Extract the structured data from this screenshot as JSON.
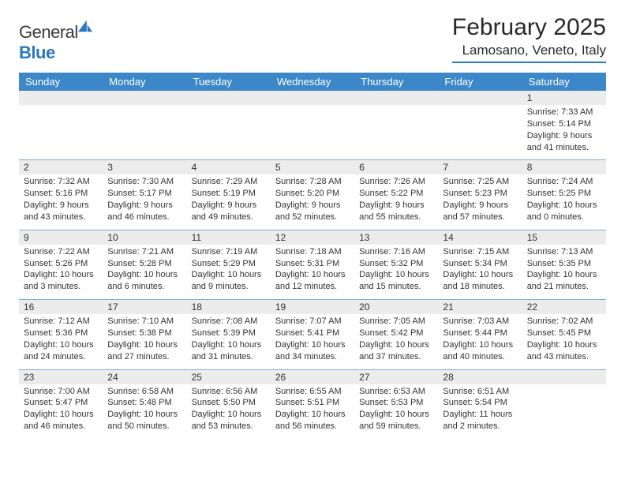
{
  "brand": {
    "text1": "General",
    "text2": "Blue",
    "text_color": "#3a3a3a",
    "accent_color": "#2b77c0"
  },
  "title": {
    "month": "February 2025",
    "location": "Lamosano, Veneto, Italy"
  },
  "colors": {
    "header_bg": "#3b87c8",
    "daynum_bg": "#ececec",
    "rule": "#2b77c0",
    "text": "#333333"
  },
  "days_of_week": [
    "Sunday",
    "Monday",
    "Tuesday",
    "Wednesday",
    "Thursday",
    "Friday",
    "Saturday"
  ],
  "weeks": [
    [
      null,
      null,
      null,
      null,
      null,
      null,
      {
        "n": "1",
        "sunrise": "Sunrise: 7:33 AM",
        "sunset": "Sunset: 5:14 PM",
        "day1": "Daylight: 9 hours",
        "day2": "and 41 minutes."
      }
    ],
    [
      {
        "n": "2",
        "sunrise": "Sunrise: 7:32 AM",
        "sunset": "Sunset: 5:16 PM",
        "day1": "Daylight: 9 hours",
        "day2": "and 43 minutes."
      },
      {
        "n": "3",
        "sunrise": "Sunrise: 7:30 AM",
        "sunset": "Sunset: 5:17 PM",
        "day1": "Daylight: 9 hours",
        "day2": "and 46 minutes."
      },
      {
        "n": "4",
        "sunrise": "Sunrise: 7:29 AM",
        "sunset": "Sunset: 5:19 PM",
        "day1": "Daylight: 9 hours",
        "day2": "and 49 minutes."
      },
      {
        "n": "5",
        "sunrise": "Sunrise: 7:28 AM",
        "sunset": "Sunset: 5:20 PM",
        "day1": "Daylight: 9 hours",
        "day2": "and 52 minutes."
      },
      {
        "n": "6",
        "sunrise": "Sunrise: 7:26 AM",
        "sunset": "Sunset: 5:22 PM",
        "day1": "Daylight: 9 hours",
        "day2": "and 55 minutes."
      },
      {
        "n": "7",
        "sunrise": "Sunrise: 7:25 AM",
        "sunset": "Sunset: 5:23 PM",
        "day1": "Daylight: 9 hours",
        "day2": "and 57 minutes."
      },
      {
        "n": "8",
        "sunrise": "Sunrise: 7:24 AM",
        "sunset": "Sunset: 5:25 PM",
        "day1": "Daylight: 10 hours",
        "day2": "and 0 minutes."
      }
    ],
    [
      {
        "n": "9",
        "sunrise": "Sunrise: 7:22 AM",
        "sunset": "Sunset: 5:26 PM",
        "day1": "Daylight: 10 hours",
        "day2": "and 3 minutes."
      },
      {
        "n": "10",
        "sunrise": "Sunrise: 7:21 AM",
        "sunset": "Sunset: 5:28 PM",
        "day1": "Daylight: 10 hours",
        "day2": "and 6 minutes."
      },
      {
        "n": "11",
        "sunrise": "Sunrise: 7:19 AM",
        "sunset": "Sunset: 5:29 PM",
        "day1": "Daylight: 10 hours",
        "day2": "and 9 minutes."
      },
      {
        "n": "12",
        "sunrise": "Sunrise: 7:18 AM",
        "sunset": "Sunset: 5:31 PM",
        "day1": "Daylight: 10 hours",
        "day2": "and 12 minutes."
      },
      {
        "n": "13",
        "sunrise": "Sunrise: 7:16 AM",
        "sunset": "Sunset: 5:32 PM",
        "day1": "Daylight: 10 hours",
        "day2": "and 15 minutes."
      },
      {
        "n": "14",
        "sunrise": "Sunrise: 7:15 AM",
        "sunset": "Sunset: 5:34 PM",
        "day1": "Daylight: 10 hours",
        "day2": "and 18 minutes."
      },
      {
        "n": "15",
        "sunrise": "Sunrise: 7:13 AM",
        "sunset": "Sunset: 5:35 PM",
        "day1": "Daylight: 10 hours",
        "day2": "and 21 minutes."
      }
    ],
    [
      {
        "n": "16",
        "sunrise": "Sunrise: 7:12 AM",
        "sunset": "Sunset: 5:36 PM",
        "day1": "Daylight: 10 hours",
        "day2": "and 24 minutes."
      },
      {
        "n": "17",
        "sunrise": "Sunrise: 7:10 AM",
        "sunset": "Sunset: 5:38 PM",
        "day1": "Daylight: 10 hours",
        "day2": "and 27 minutes."
      },
      {
        "n": "18",
        "sunrise": "Sunrise: 7:08 AM",
        "sunset": "Sunset: 5:39 PM",
        "day1": "Daylight: 10 hours",
        "day2": "and 31 minutes."
      },
      {
        "n": "19",
        "sunrise": "Sunrise: 7:07 AM",
        "sunset": "Sunset: 5:41 PM",
        "day1": "Daylight: 10 hours",
        "day2": "and 34 minutes."
      },
      {
        "n": "20",
        "sunrise": "Sunrise: 7:05 AM",
        "sunset": "Sunset: 5:42 PM",
        "day1": "Daylight: 10 hours",
        "day2": "and 37 minutes."
      },
      {
        "n": "21",
        "sunrise": "Sunrise: 7:03 AM",
        "sunset": "Sunset: 5:44 PM",
        "day1": "Daylight: 10 hours",
        "day2": "and 40 minutes."
      },
      {
        "n": "22",
        "sunrise": "Sunrise: 7:02 AM",
        "sunset": "Sunset: 5:45 PM",
        "day1": "Daylight: 10 hours",
        "day2": "and 43 minutes."
      }
    ],
    [
      {
        "n": "23",
        "sunrise": "Sunrise: 7:00 AM",
        "sunset": "Sunset: 5:47 PM",
        "day1": "Daylight: 10 hours",
        "day2": "and 46 minutes."
      },
      {
        "n": "24",
        "sunrise": "Sunrise: 6:58 AM",
        "sunset": "Sunset: 5:48 PM",
        "day1": "Daylight: 10 hours",
        "day2": "and 50 minutes."
      },
      {
        "n": "25",
        "sunrise": "Sunrise: 6:56 AM",
        "sunset": "Sunset: 5:50 PM",
        "day1": "Daylight: 10 hours",
        "day2": "and 53 minutes."
      },
      {
        "n": "26",
        "sunrise": "Sunrise: 6:55 AM",
        "sunset": "Sunset: 5:51 PM",
        "day1": "Daylight: 10 hours",
        "day2": "and 56 minutes."
      },
      {
        "n": "27",
        "sunrise": "Sunrise: 6:53 AM",
        "sunset": "Sunset: 5:53 PM",
        "day1": "Daylight: 10 hours",
        "day2": "and 59 minutes."
      },
      {
        "n": "28",
        "sunrise": "Sunrise: 6:51 AM",
        "sunset": "Sunset: 5:54 PM",
        "day1": "Daylight: 11 hours",
        "day2": "and 2 minutes."
      },
      null
    ]
  ]
}
